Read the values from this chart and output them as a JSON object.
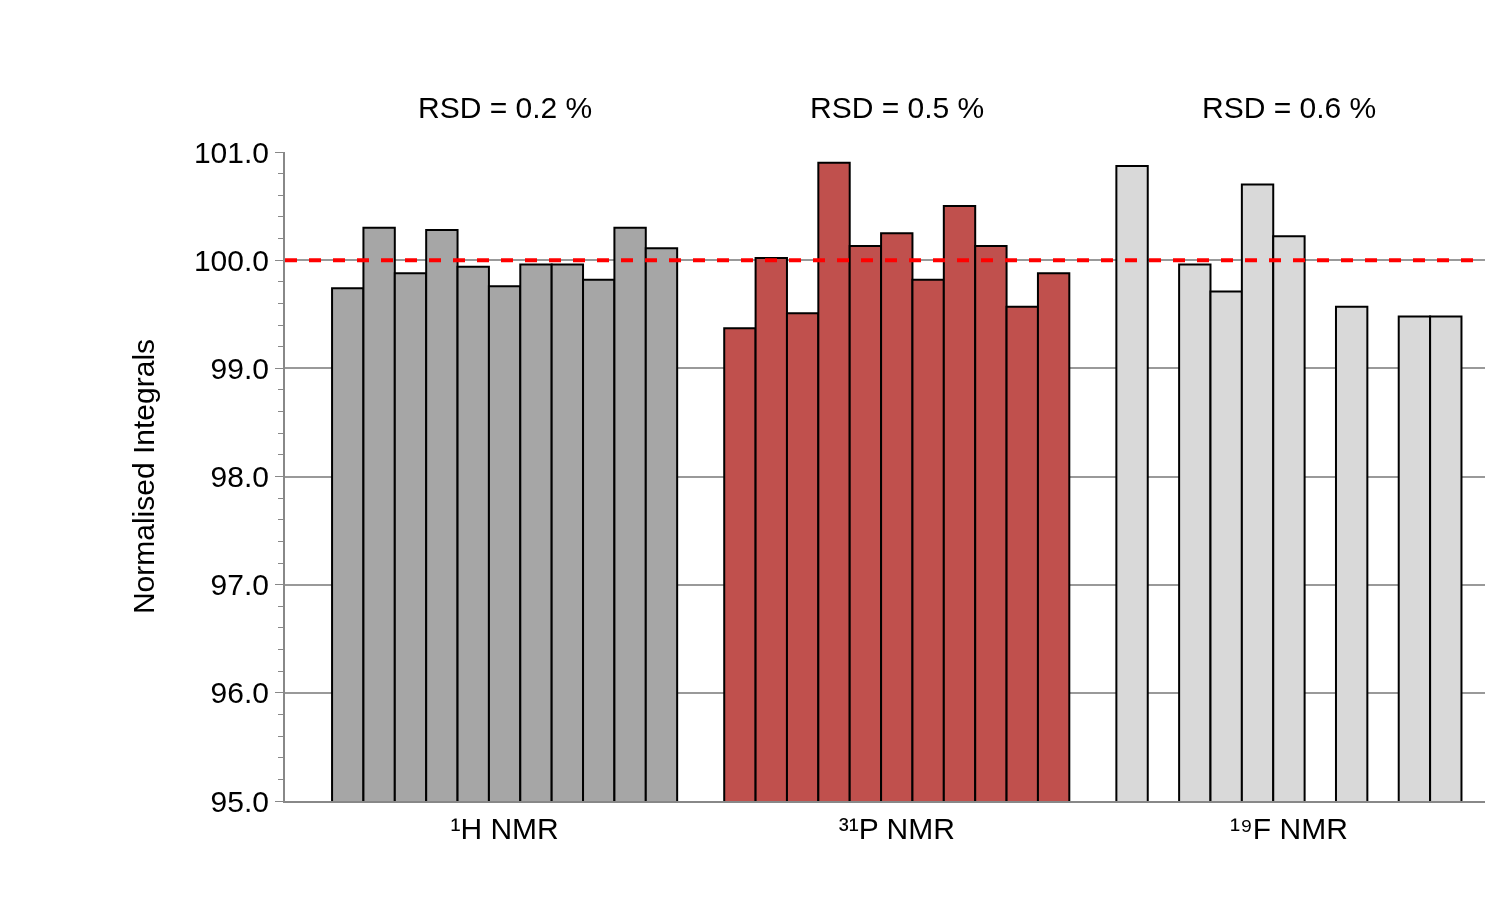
{
  "chart_data": {
    "type": "bar",
    "ylabel": "Normalised Integrals",
    "categories": [
      "¹H NMR",
      "³¹P NMR",
      "¹⁹F NMR"
    ],
    "series": [
      {
        "colors": [
          "#a6a6a6",
          "#c0504d",
          "#d9d9d9"
        ],
        "values": [
          99.74,
          99.37,
          100.87
        ]
      },
      {
        "colors": [
          "#a6a6a6",
          "#c0504d",
          "#d9d9d9"
        ],
        "values": [
          100.3,
          100.02,
          null
        ]
      },
      {
        "colors": [
          "#a6a6a6",
          "#c0504d",
          "#d9d9d9"
        ],
        "values": [
          99.88,
          99.51,
          99.96
        ]
      },
      {
        "colors": [
          "#a6a6a6",
          "#c0504d",
          "#d9d9d9"
        ],
        "values": [
          100.28,
          100.9,
          99.71
        ]
      },
      {
        "colors": [
          "#a6a6a6",
          "#c0504d",
          "#d9d9d9"
        ],
        "values": [
          99.94,
          100.13,
          100.7
        ]
      },
      {
        "colors": [
          "#a6a6a6",
          "#c0504d",
          "#d9d9d9"
        ],
        "values": [
          99.76,
          100.25,
          100.22
        ]
      },
      {
        "colors": [
          "#a6a6a6",
          "#c0504d",
          "#d9d9d9"
        ],
        "values": [
          99.96,
          99.82,
          null
        ]
      },
      {
        "colors": [
          "#a6a6a6",
          "#c0504d",
          "#d9d9d9"
        ],
        "values": [
          99.96,
          100.5,
          99.57
        ]
      },
      {
        "colors": [
          "#a6a6a6",
          "#c0504d",
          "#d9d9d9"
        ],
        "values": [
          99.82,
          100.13,
          null
        ]
      },
      {
        "colors": [
          "#a6a6a6",
          "#c0504d",
          "#d9d9d9"
        ],
        "values": [
          100.3,
          99.57,
          99.48
        ]
      },
      {
        "colors": [
          "#a6a6a6",
          "#c0504d",
          "#d9d9d9"
        ],
        "values": [
          100.11,
          99.88,
          99.48
        ]
      }
    ],
    "ylim": [
      95,
      101
    ],
    "yticks": [
      {
        "value": 95,
        "label": "95.0"
      },
      {
        "value": 96,
        "label": "96.0"
      },
      {
        "value": 97,
        "label": "97.0"
      },
      {
        "value": 98,
        "label": "98.0"
      },
      {
        "value": 99,
        "label": "99.0"
      },
      {
        "value": 100,
        "label": "100.0"
      },
      {
        "value": 101,
        "label": "101.0"
      }
    ],
    "grid": "y",
    "ref_lines": [
      {
        "axis": "y",
        "value": 100,
        "color": "#ff0000",
        "line_style": "dashed"
      }
    ],
    "annotations": [
      "RSD = 0.2 %",
      "RSD = 0.5 %",
      "RSD = 0.6 %"
    ]
  }
}
